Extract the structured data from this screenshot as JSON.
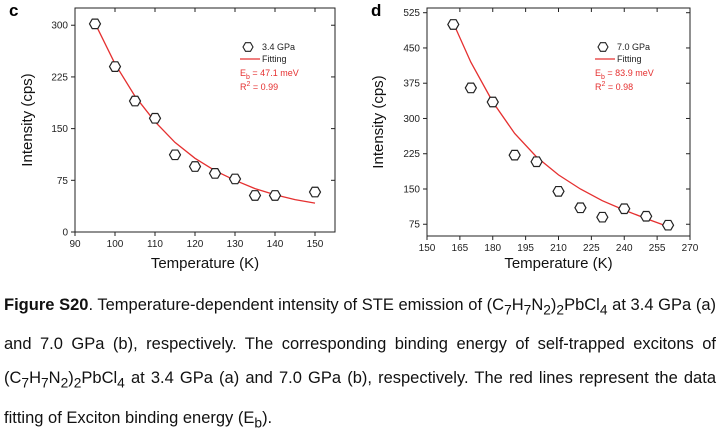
{
  "chart_data": [
    {
      "type": "scatter",
      "panel": "c",
      "xlabel": "Temperature (K)",
      "ylabel": "Intensity (cps)",
      "xlim": [
        90,
        155
      ],
      "ylim": [
        0,
        325
      ],
      "xticks": [
        90,
        100,
        110,
        120,
        130,
        140,
        150
      ],
      "yticks": [
        0,
        75,
        150,
        225,
        300
      ],
      "legend_position": "top-right",
      "series": [
        {
          "name": "3.4 GPa",
          "marker": "hexagon",
          "x": [
            95,
            100,
            105,
            110,
            115,
            120,
            125,
            130,
            135,
            140,
            150
          ],
          "y": [
            302,
            240,
            190,
            165,
            112,
            95,
            85,
            77,
            53,
            53,
            58
          ]
        },
        {
          "name": "Fitting",
          "kind": "line",
          "color": "#e53030",
          "x": [
            95,
            100,
            105,
            110,
            115,
            120,
            125,
            130,
            135,
            140,
            145,
            150
          ],
          "y": [
            303,
            244,
            197,
            160,
            130,
            107,
            89,
            75,
            63,
            54,
            47,
            42
          ]
        }
      ],
      "annotations": [
        "E_b = 47.1 meV",
        "R^2 = 0.99"
      ]
    },
    {
      "type": "scatter",
      "panel": "d",
      "xlabel": "Temperature (K)",
      "ylabel": "Intensity (cps)",
      "xlim": [
        150,
        270
      ],
      "ylim": [
        50,
        535
      ],
      "xticks": [
        150,
        165,
        180,
        195,
        210,
        225,
        240,
        255,
        270
      ],
      "yticks": [
        75,
        150,
        225,
        300,
        375,
        450,
        525
      ],
      "legend_position": "top-right",
      "series": [
        {
          "name": "7.0 GPa",
          "marker": "hexagon",
          "x": [
            162,
            170,
            180,
            190,
            200,
            210,
            220,
            230,
            240,
            250,
            260
          ],
          "y": [
            500,
            365,
            335,
            222,
            208,
            145,
            110,
            90,
            108,
            92,
            73
          ]
        },
        {
          "name": "Fitting",
          "kind": "line",
          "color": "#e53030",
          "x": [
            162,
            170,
            180,
            190,
            200,
            210,
            220,
            230,
            240,
            250,
            260
          ],
          "y": [
            503,
            420,
            335,
            268,
            218,
            180,
            150,
            125,
            105,
            87,
            70
          ]
        }
      ],
      "annotations": [
        "E_b = 83.9 meV",
        "R^2 = 0.98"
      ]
    }
  ],
  "panels": [
    {
      "letter": "c",
      "legend_points": "3.4 GPa",
      "legend_fit": "Fitting",
      "eb_prefix": "E",
      "eb_sub": "b",
      "eb_value": " = 47.1 meV",
      "r2_prefix": "R",
      "r2_sup": "2",
      "r2_value": " = 0.99"
    },
    {
      "letter": "d",
      "legend_points": "7.0 GPa",
      "legend_fit": "Fitting",
      "eb_prefix": "E",
      "eb_sub": "b",
      "eb_value": " = 83.9 meV",
      "r2_prefix": "R",
      "r2_sup": "2",
      "r2_value": " = 0.98"
    }
  ],
  "caption": {
    "label": "Figure S20",
    "p1": ". Temperature-dependent intensity of STE emission of (C",
    "s7a": "7",
    "h": "H",
    "s7b": "7",
    "n": "N",
    "s2a": "2",
    "p2": ")",
    "s2b": "2",
    "pbcl": "PbCl",
    "s4": "4",
    "p3": " at 3.4 GPa (a) and 7.0 GPa (b), respectively. The corresponding binding energy of self-trapped excitons of (C",
    "t7a": "7",
    "t_h": "H",
    "t7b": "7",
    "t_n": "N",
    "t2a": "2",
    "p4": ")",
    "t2b": "2",
    "t_pbcl": "PbCl",
    "t4": "4",
    "p5": " at 3.4 GPa (a) and 7.0 GPa (b), respectively. The red lines represent the data fitting of Exciton binding energy (E",
    "eb": "b",
    "p6": ")."
  }
}
